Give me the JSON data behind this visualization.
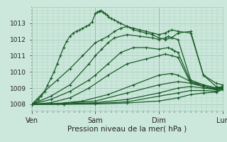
{
  "bg_color": "#cce8dc",
  "plot_bg_color": "#cce8dc",
  "grid_color": "#aaccbb",
  "line_color": "#1a5c28",
  "marker": "+",
  "xlabel": "Pression niveau de la mer( hPa )",
  "xtick_labels": [
    "Ven",
    "Sam",
    "Dim",
    "Lun"
  ],
  "xtick_positions": [
    0,
    1,
    2,
    3
  ],
  "ylim": [
    1007.6,
    1014.0
  ],
  "yticks": [
    1008,
    1009,
    1010,
    1011,
    1012,
    1013
  ],
  "lines": [
    {
      "x": [
        0.0,
        0.05,
        0.1,
        0.15,
        0.2,
        0.25,
        0.3,
        0.35,
        0.4,
        0.45,
        0.5,
        0.55,
        0.6,
        0.65,
        0.7,
        0.75,
        0.8,
        0.85,
        0.9,
        0.95,
        1.0,
        1.03,
        1.06,
        1.09,
        1.12,
        1.15,
        1.18,
        1.21,
        1.25,
        1.3,
        1.35,
        1.4,
        1.5,
        1.6,
        1.7,
        1.8,
        1.9,
        2.0,
        2.1,
        2.2,
        2.3,
        2.5,
        2.7,
        2.9,
        3.0
      ],
      "y": [
        1008.0,
        1008.1,
        1008.3,
        1008.5,
        1008.8,
        1009.2,
        1009.6,
        1010.0,
        1010.5,
        1011.0,
        1011.5,
        1011.9,
        1012.2,
        1012.4,
        1012.5,
        1012.6,
        1012.7,
        1012.8,
        1012.9,
        1013.1,
        1013.6,
        1013.7,
        1013.75,
        1013.8,
        1013.7,
        1013.6,
        1013.5,
        1013.4,
        1013.3,
        1013.2,
        1013.1,
        1013.0,
        1012.8,
        1012.6,
        1012.5,
        1012.4,
        1012.3,
        1012.1,
        1012.0,
        1012.1,
        1012.4,
        1012.5,
        1009.8,
        1009.1,
        1009.0
      ]
    },
    {
      "x": [
        0.0,
        0.2,
        0.4,
        0.6,
        0.8,
        1.0,
        1.1,
        1.2,
        1.3,
        1.4,
        1.5,
        1.6,
        1.7,
        1.8,
        1.9,
        2.0,
        2.1,
        2.15,
        2.2,
        2.3,
        2.5,
        2.7,
        2.9,
        3.0
      ],
      "y": [
        1008.0,
        1008.8,
        1009.5,
        1010.2,
        1011.0,
        1011.8,
        1012.0,
        1012.2,
        1012.5,
        1012.7,
        1012.8,
        1012.7,
        1012.6,
        1012.5,
        1012.4,
        1012.3,
        1012.4,
        1012.5,
        1012.6,
        1012.5,
        1012.4,
        1009.8,
        1009.3,
        1009.2
      ]
    },
    {
      "x": [
        0.0,
        0.3,
        0.6,
        0.9,
        1.0,
        1.1,
        1.2,
        1.3,
        1.5,
        1.7,
        1.9,
        2.0,
        2.1,
        2.15,
        2.2,
        2.3,
        2.5,
        2.7,
        2.9,
        3.0
      ],
      "y": [
        1008.0,
        1008.5,
        1009.2,
        1010.5,
        1011.0,
        1011.4,
        1011.8,
        1012.1,
        1012.3,
        1012.2,
        1012.1,
        1012.0,
        1012.1,
        1012.2,
        1012.1,
        1012.0,
        1009.5,
        1009.2,
        1009.0,
        1009.05
      ]
    },
    {
      "x": [
        0.0,
        0.3,
        0.6,
        0.9,
        1.0,
        1.2,
        1.4,
        1.6,
        1.8,
        2.0,
        2.15,
        2.2,
        2.25,
        2.3,
        2.5,
        2.7,
        2.9,
        3.0
      ],
      "y": [
        1008.0,
        1008.3,
        1008.8,
        1009.5,
        1009.8,
        1010.5,
        1011.2,
        1011.5,
        1011.5,
        1011.4,
        1011.5,
        1011.4,
        1011.3,
        1011.2,
        1009.4,
        1009.2,
        1009.0,
        1009.1
      ]
    },
    {
      "x": [
        0.0,
        0.3,
        0.6,
        0.9,
        1.2,
        1.5,
        1.8,
        2.0,
        2.1,
        2.2,
        2.3,
        2.5,
        2.7,
        2.9,
        3.0
      ],
      "y": [
        1008.0,
        1008.1,
        1008.4,
        1009.0,
        1009.8,
        1010.5,
        1010.8,
        1011.0,
        1011.1,
        1011.0,
        1010.9,
        1009.3,
        1009.1,
        1008.9,
        1009.0
      ]
    },
    {
      "x": [
        0.0,
        0.4,
        0.8,
        1.2,
        1.6,
        2.0,
        2.2,
        2.3,
        2.5,
        2.7,
        2.9,
        3.0
      ],
      "y": [
        1008.0,
        1008.05,
        1008.2,
        1008.6,
        1009.2,
        1009.8,
        1009.9,
        1009.8,
        1009.4,
        1009.1,
        1008.9,
        1009.0
      ]
    },
    {
      "x": [
        0.0,
        0.5,
        1.0,
        1.5,
        2.0,
        2.3,
        2.5,
        2.7,
        2.9,
        3.0
      ],
      "y": [
        1008.0,
        1008.05,
        1008.2,
        1008.7,
        1009.2,
        1009.4,
        1009.3,
        1009.1,
        1008.95,
        1009.05
      ]
    },
    {
      "x": [
        0.0,
        0.5,
        1.0,
        1.5,
        2.0,
        2.3,
        2.5,
        2.7,
        2.9,
        3.0
      ],
      "y": [
        1008.0,
        1008.02,
        1008.1,
        1008.3,
        1008.7,
        1009.0,
        1009.1,
        1009.0,
        1008.9,
        1009.0
      ]
    },
    {
      "x": [
        0.0,
        0.5,
        1.0,
        1.5,
        2.0,
        2.3,
        2.5,
        2.7,
        2.9,
        3.0
      ],
      "y": [
        1008.0,
        1008.01,
        1008.05,
        1008.15,
        1008.5,
        1008.7,
        1008.85,
        1008.85,
        1008.8,
        1008.95
      ]
    },
    {
      "x": [
        0.0,
        0.5,
        1.0,
        1.5,
        2.0,
        2.3,
        2.5,
        2.7,
        2.9,
        3.0
      ],
      "y": [
        1008.0,
        1008.0,
        1008.02,
        1008.08,
        1008.2,
        1008.4,
        1008.6,
        1008.7,
        1008.75,
        1008.9
      ]
    }
  ]
}
